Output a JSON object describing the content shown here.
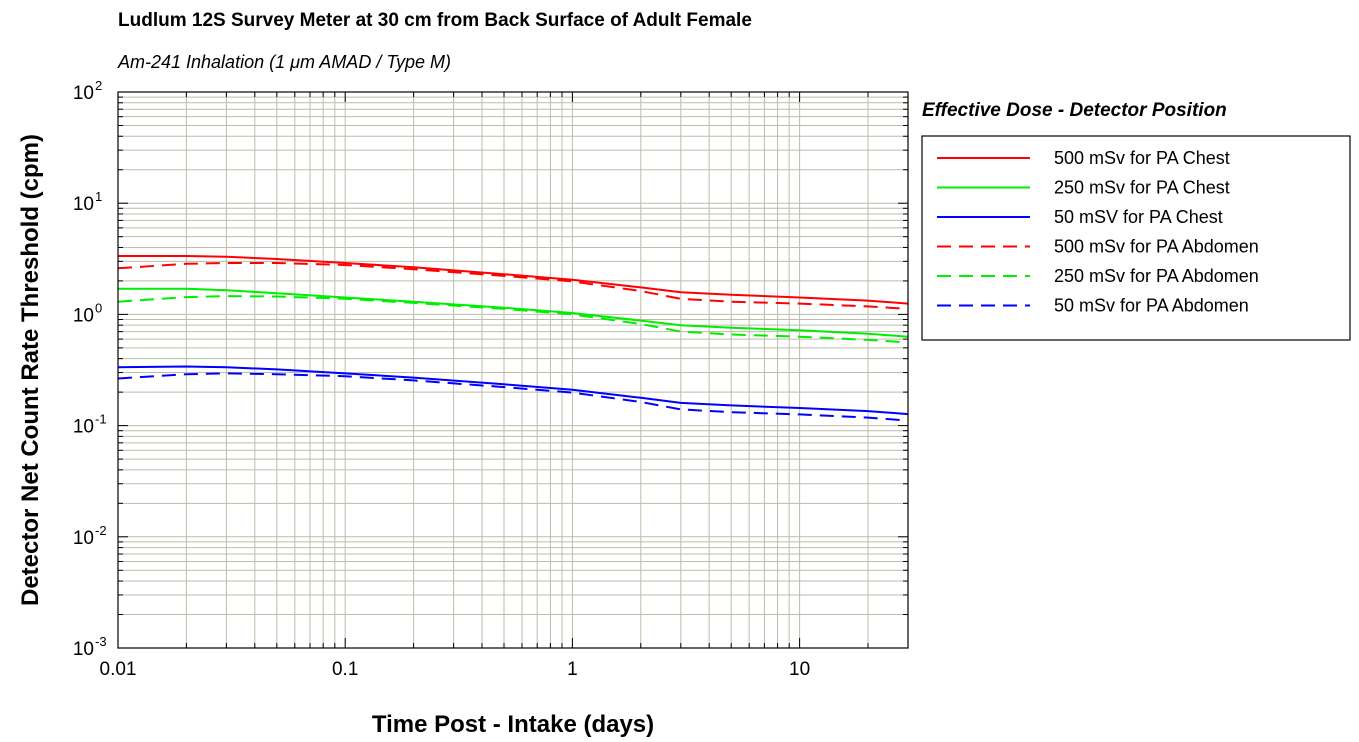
{
  "chart_data": {
    "type": "line",
    "title": "Ludlum 12S Survey Meter at 30 cm from Back Surface of Adult Female",
    "subtitle_prefix": "Am-241 Inhalation (1 ",
    "subtitle_mu": "μ",
    "subtitle_suffix": "m AMAD / Type M)",
    "xlabel": "Time Post - Intake (days)",
    "ylabel": "Detector Net Count Rate Threshold (cpm)",
    "x_scale": "log",
    "y_scale": "log",
    "xlim": [
      0.01,
      30
    ],
    "ylim": [
      0.001,
      100
    ],
    "grid": true,
    "x_ticks": [
      {
        "value": 0.01,
        "label": "0.01"
      },
      {
        "value": 0.1,
        "label": "0.1"
      },
      {
        "value": 1,
        "label": "1"
      },
      {
        "value": 10,
        "label": "10"
      }
    ],
    "y_ticks": [
      {
        "value": 100,
        "base": "10",
        "exp": "2"
      },
      {
        "value": 10,
        "base": "10",
        "exp": "1"
      },
      {
        "value": 1,
        "base": "10",
        "exp": "0"
      },
      {
        "value": 0.1,
        "base": "10",
        "exp": "-1"
      },
      {
        "value": 0.01,
        "base": "10",
        "exp": "-2"
      },
      {
        "value": 0.001,
        "base": "10",
        "exp": "-3"
      }
    ],
    "legend_title": "Effective Dose - Detector Position",
    "legend_position": "right",
    "series": [
      {
        "name": "500 mSv for PA Chest",
        "color": "#ff0000",
        "dash": "solid",
        "x": [
          0.01,
          0.02,
          0.03,
          0.05,
          0.1,
          0.2,
          0.5,
          1,
          2,
          3,
          5,
          10,
          20,
          30
        ],
        "y": [
          3.35,
          3.35,
          3.3,
          3.15,
          2.9,
          2.65,
          2.3,
          2.05,
          1.75,
          1.58,
          1.5,
          1.42,
          1.33,
          1.25
        ]
      },
      {
        "name": "250 mSv for PA Chest",
        "color": "#00ee00",
        "dash": "solid",
        "x": [
          0.01,
          0.02,
          0.03,
          0.05,
          0.1,
          0.2,
          0.5,
          1,
          2,
          3,
          5,
          10,
          20,
          30
        ],
        "y": [
          1.7,
          1.7,
          1.65,
          1.55,
          1.42,
          1.3,
          1.15,
          1.03,
          0.88,
          0.8,
          0.76,
          0.72,
          0.67,
          0.63
        ]
      },
      {
        "name": "50 mSV for PA Chest",
        "color": "#0000ff",
        "dash": "solid",
        "x": [
          0.01,
          0.02,
          0.03,
          0.05,
          0.1,
          0.2,
          0.5,
          1,
          2,
          3,
          5,
          10,
          20,
          30
        ],
        "y": [
          0.335,
          0.34,
          0.335,
          0.32,
          0.295,
          0.27,
          0.235,
          0.21,
          0.178,
          0.16,
          0.152,
          0.144,
          0.135,
          0.127
        ]
      },
      {
        "name": "500 mSv for PA Abdomen",
        "color": "#ff0000",
        "dash": "dashed",
        "x": [
          0.01,
          0.02,
          0.03,
          0.05,
          0.1,
          0.2,
          0.5,
          1,
          2,
          3,
          5,
          10,
          20,
          30
        ],
        "y": [
          2.6,
          2.85,
          2.9,
          2.9,
          2.78,
          2.55,
          2.22,
          1.98,
          1.62,
          1.38,
          1.3,
          1.25,
          1.18,
          1.12
        ]
      },
      {
        "name": "250 mSv for PA Abdomen",
        "color": "#00ee00",
        "dash": "dashed",
        "x": [
          0.01,
          0.02,
          0.03,
          0.05,
          0.1,
          0.2,
          0.5,
          1,
          2,
          3,
          5,
          10,
          20,
          30
        ],
        "y": [
          1.3,
          1.43,
          1.46,
          1.45,
          1.38,
          1.27,
          1.12,
          1.0,
          0.82,
          0.7,
          0.66,
          0.63,
          0.59,
          0.56
        ]
      },
      {
        "name": "50 mSv for PA Abdomen",
        "color": "#0000ff",
        "dash": "dashed",
        "x": [
          0.01,
          0.02,
          0.03,
          0.05,
          0.1,
          0.2,
          0.5,
          1,
          2,
          3,
          5,
          10,
          20,
          30
        ],
        "y": [
          0.265,
          0.29,
          0.295,
          0.29,
          0.278,
          0.255,
          0.222,
          0.198,
          0.163,
          0.14,
          0.132,
          0.126,
          0.118,
          0.111
        ]
      }
    ]
  }
}
